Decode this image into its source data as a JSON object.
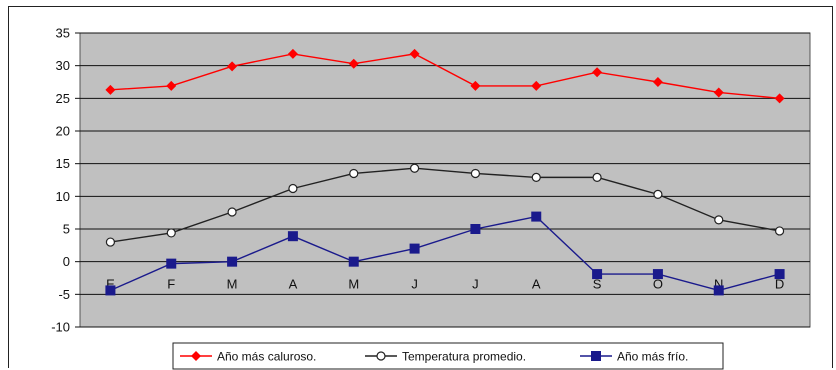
{
  "chart_data": {
    "type": "line",
    "title": "",
    "xlabel": "",
    "ylabel": "",
    "categories": [
      "E",
      "F",
      "M",
      "A",
      "M",
      "J",
      "J",
      "A",
      "S",
      "O",
      "N",
      "D"
    ],
    "ylim": [
      -10,
      35
    ],
    "yticks": [
      35,
      30,
      25,
      20,
      15,
      10,
      5,
      0,
      -5,
      -10
    ],
    "grid": true,
    "plot_background": "#c0c0c0",
    "legend_position": "bottom",
    "series": [
      {
        "name": "Año más caluroso.",
        "color": "#ff0000",
        "marker": "diamond",
        "values": [
          26.3,
          26.9,
          29.9,
          31.8,
          30.3,
          31.8,
          26.9,
          26.9,
          29.0,
          27.5,
          25.9,
          25.0
        ]
      },
      {
        "name": "Temperatura promedio.",
        "color": "#222222",
        "marker": "open-circle",
        "values": [
          3.0,
          4.4,
          7.6,
          11.2,
          13.5,
          14.3,
          13.5,
          12.9,
          12.9,
          10.3,
          6.4,
          4.7
        ]
      },
      {
        "name": "Año más frío.",
        "color": "#1a1a8c",
        "marker": "square",
        "values": [
          -4.4,
          -0.3,
          0.0,
          3.9,
          0.0,
          2.0,
          5.0,
          6.9,
          -1.9,
          -1.9,
          -4.4,
          -1.9
        ]
      }
    ]
  }
}
